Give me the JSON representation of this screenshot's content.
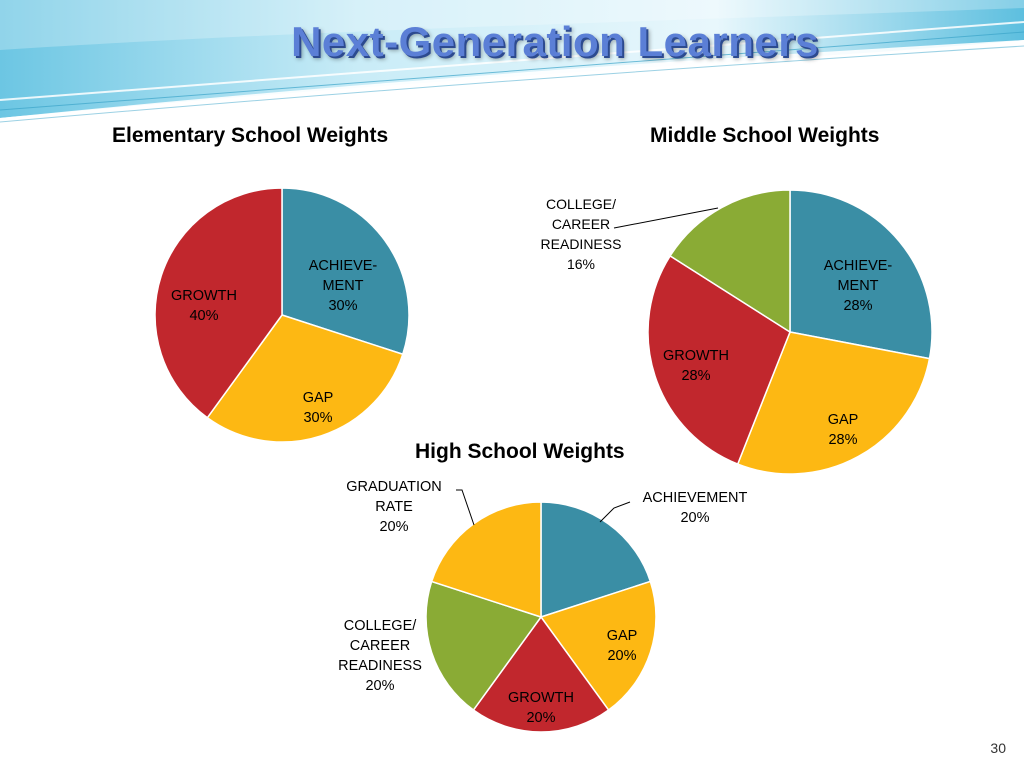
{
  "slide": {
    "title": "Next-Generation Learners",
    "page_number": "30"
  },
  "colors": {
    "achievement": "#3a8ea5",
    "gap": "#fdb813",
    "growth": "#c1272d",
    "college_career": "#8aab35",
    "graduation": "#fdb813",
    "banner_light": "#dff4fb",
    "banner_dark": "#4fb8d8",
    "title": "#5b7fd6"
  },
  "chart_data": [
    {
      "type": "pie",
      "title": "Elementary School Weights",
      "slices": [
        {
          "key": "achievement",
          "label": [
            "ACHIEVE-",
            "MENT",
            "30%"
          ],
          "value": 30,
          "color": "#3a8ea5"
        },
        {
          "key": "gap",
          "label": [
            "GAP",
            "30%"
          ],
          "value": 30,
          "color": "#fdb813"
        },
        {
          "key": "growth",
          "label": [
            "GROWTH",
            "40%"
          ],
          "value": 40,
          "color": "#c1272d"
        }
      ]
    },
    {
      "type": "pie",
      "title": "Middle School Weights",
      "slices": [
        {
          "key": "achievement",
          "label": [
            "ACHIEVE-",
            "MENT",
            "28%"
          ],
          "value": 28,
          "color": "#3a8ea5"
        },
        {
          "key": "gap",
          "label": [
            "GAP",
            "28%"
          ],
          "value": 28,
          "color": "#fdb813"
        },
        {
          "key": "growth",
          "label": [
            "GROWTH",
            "28%"
          ],
          "value": 28,
          "color": "#c1272d"
        },
        {
          "key": "college_career",
          "label": [
            "COLLEGE/",
            "CAREER",
            "READINESS",
            "16%"
          ],
          "value": 16,
          "color": "#8aab35"
        }
      ]
    },
    {
      "type": "pie",
      "title": "High School Weights",
      "slices": [
        {
          "key": "achievement",
          "label": [
            "ACHIEVEMENT",
            "20%"
          ],
          "value": 20,
          "color": "#3a8ea5"
        },
        {
          "key": "gap",
          "label": [
            "GAP",
            "20%"
          ],
          "value": 20,
          "color": "#fdb813"
        },
        {
          "key": "growth",
          "label": [
            "GROWTH",
            "20%"
          ],
          "value": 20,
          "color": "#c1272d"
        },
        {
          "key": "college_career",
          "label": [
            "COLLEGE/",
            "CAREER",
            "READINESS",
            "20%"
          ],
          "value": 20,
          "color": "#8aab35"
        },
        {
          "key": "graduation",
          "label": [
            "GRADUATION",
            "RATE",
            "20%"
          ],
          "value": 20,
          "color": "#fdb813"
        }
      ]
    }
  ]
}
